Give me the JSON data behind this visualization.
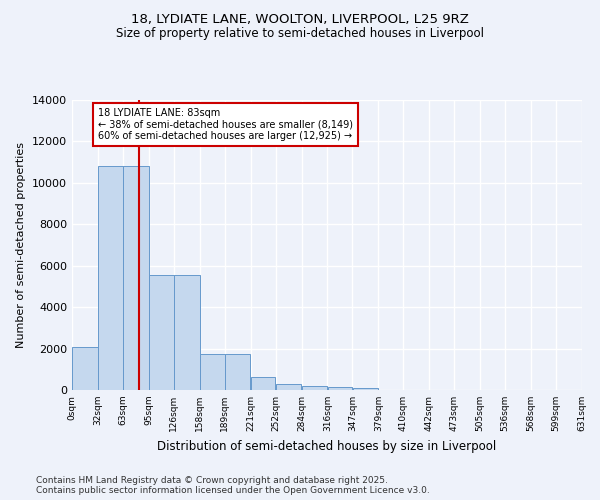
{
  "title_line1": "18, LYDIATE LANE, WOOLTON, LIVERPOOL, L25 9RZ",
  "title_line2": "Size of property relative to semi-detached houses in Liverpool",
  "xlabel": "Distribution of semi-detached houses by size in Liverpool",
  "ylabel": "Number of semi-detached properties",
  "bar_color": "#c5d8ee",
  "bar_edge_color": "#6699cc",
  "annotation_line_color": "#cc0000",
  "annotation_box_color": "#cc0000",
  "annotation_text": "18 LYDIATE LANE: 83sqm\n← 38% of semi-detached houses are smaller (8,149)\n60% of semi-detached houses are larger (12,925) →",
  "property_size": 83,
  "bin_edges": [
    0,
    32,
    63,
    95,
    126,
    158,
    189,
    221,
    252,
    284,
    316,
    347,
    379,
    410,
    442,
    473,
    505,
    536,
    568,
    599,
    631
  ],
  "bin_counts": [
    2100,
    10800,
    10800,
    5550,
    5550,
    1750,
    1750,
    630,
    300,
    200,
    130,
    80,
    0,
    0,
    0,
    0,
    0,
    0,
    0,
    0
  ],
  "ylim": [
    0,
    14000
  ],
  "yticks": [
    0,
    2000,
    4000,
    6000,
    8000,
    10000,
    12000,
    14000
  ],
  "background_color": "#eef2fa",
  "grid_color": "#ffffff",
  "footer_line1": "Contains HM Land Registry data © Crown copyright and database right 2025.",
  "footer_line2": "Contains public sector information licensed under the Open Government Licence v3.0."
}
